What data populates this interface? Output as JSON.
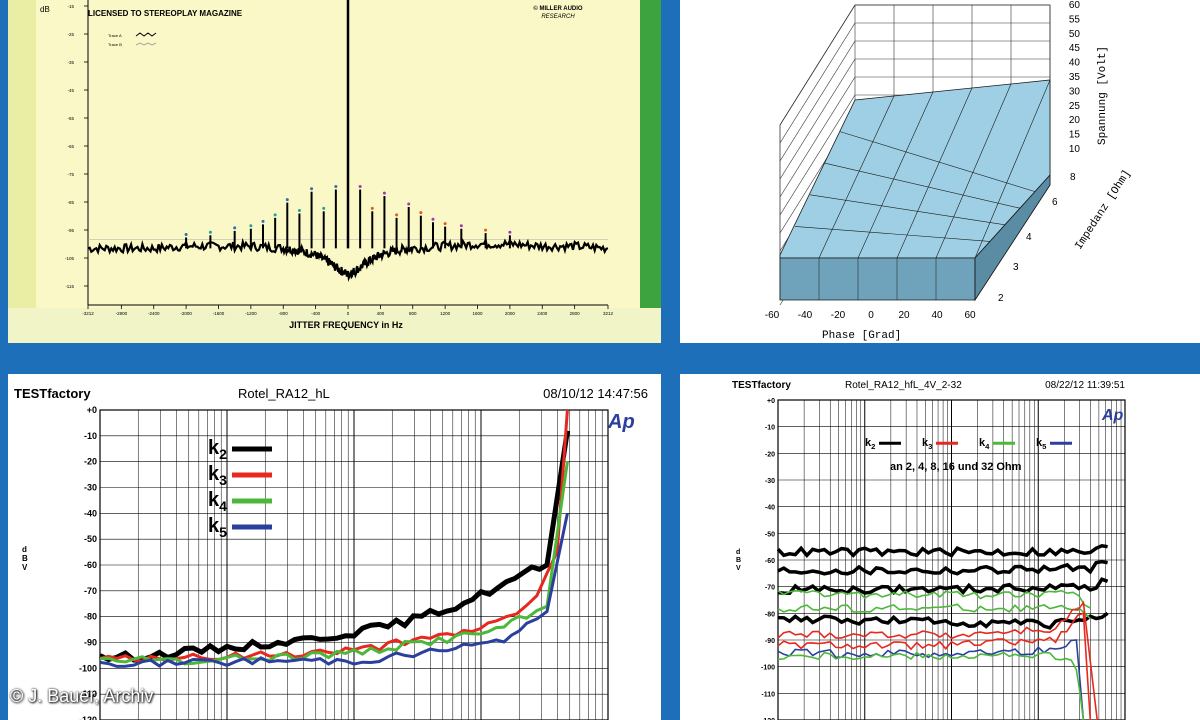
{
  "copyright": "© J. Bauer, Archiv",
  "chart_data": [
    {
      "type": "line",
      "id": "jitter",
      "title": "LICENSED TO STEREOPLAY MAGAZINE",
      "brand": [
        "© MILLER AUDIO",
        "RESEARCH"
      ],
      "ylabel": "dB",
      "xlabel": "JITTER FREQUENCY in Hz",
      "legend": [
        "Trace A",
        "Trace B"
      ],
      "x_ticks": [
        "-3212",
        "-2800",
        "-2400",
        "-2000",
        "-1600",
        "-1200",
        "-800",
        "-400",
        "0",
        "400",
        "800",
        "1200",
        "1600",
        "2000",
        "2400",
        "2800",
        "3212"
      ],
      "y_ticks": [
        "-15",
        "-25",
        "-35",
        "-45",
        "-55",
        "-65",
        "-75",
        "-85",
        "-95",
        "-105",
        "-115"
      ],
      "xlim": [
        -3212,
        3212
      ],
      "ylim": [
        -155,
        -15
      ],
      "series": [
        {
          "values": [
            [
              -3212,
              -129
            ],
            [
              -2800,
              -129
            ],
            [
              -2400,
              -129
            ],
            [
              -2000,
              -128
            ],
            [
              -1600,
              -128
            ],
            [
              -1200,
              -128
            ],
            [
              -800,
              -129
            ],
            [
              -600,
              -130
            ],
            [
              -400,
              -132
            ],
            [
              -250,
              -135
            ],
            [
              -100,
              -139
            ],
            [
              0,
              -141
            ],
            [
              100,
              -139
            ],
            [
              250,
              -135
            ],
            [
              400,
              -132
            ],
            [
              600,
              -130
            ],
            [
              800,
              -129
            ],
            [
              1200,
              -128
            ],
            [
              1600,
              -127
            ],
            [
              2000,
              -127
            ],
            [
              2400,
              -128
            ],
            [
              2800,
              -128
            ],
            [
              3212,
              -129
            ]
          ]
        }
      ],
      "spikes": [
        [
          0,
          -15
        ],
        [
          -150,
          -102
        ],
        [
          150,
          -102
        ],
        [
          -300,
          -112
        ],
        [
          300,
          -112
        ],
        [
          -450,
          -103
        ],
        [
          450,
          -105
        ],
        [
          -600,
          -113
        ],
        [
          600,
          -115
        ],
        [
          -750,
          -108
        ],
        [
          750,
          -110
        ],
        [
          -900,
          -115
        ],
        [
          900,
          -114
        ],
        [
          -1050,
          -118
        ],
        [
          1050,
          -117
        ],
        [
          -1200,
          -120
        ],
        [
          1200,
          -119
        ],
        [
          -1400,
          -121
        ],
        [
          1400,
          -120
        ],
        [
          -1700,
          -123
        ],
        [
          1700,
          -122
        ],
        [
          -2000,
          -124
        ],
        [
          2000,
          -123
        ]
      ]
    },
    {
      "type": "3d-surface",
      "id": "surface",
      "x_label": "Phase [Grad]",
      "x_ticks": [
        "-60",
        "-40",
        "-20",
        "0",
        "20",
        "40",
        "60"
      ],
      "z_label": "Impedanz [Ohm]",
      "z_ticks": [
        "2",
        "3",
        "4",
        "6",
        "8"
      ],
      "y_label": "Spannung [Volt]",
      "y_ticks": [
        "10",
        "15",
        "20",
        "25",
        "30",
        "35",
        "40",
        "45",
        "50",
        "55",
        "60"
      ],
      "y_range": [
        10,
        60
      ]
    },
    {
      "type": "line",
      "id": "dist1",
      "header": [
        "TESTfactory",
        "Rotel_RA12_hL",
        "08/10/12 14:47:56"
      ],
      "ylabel": "dBV",
      "ylim": [
        -120,
        0
      ],
      "y_ticks": [
        "+0",
        "-10",
        "-20",
        "-30",
        "-40",
        "-50",
        "-60",
        "-70",
        "-80",
        "-90",
        "-100",
        "-110",
        "-120"
      ],
      "legend": [
        {
          "name": "k2",
          "color": "#000000"
        },
        {
          "name": "k3",
          "color": "#e8281e"
        },
        {
          "name": "k4",
          "color": "#4cb83a"
        },
        {
          "name": "k5",
          "color": "#2b3f9e"
        }
      ],
      "series": [
        {
          "name": "k2",
          "values": [
            [
              0,
              -96
            ],
            [
              0.1,
              -95
            ],
            [
              0.2,
              -93
            ],
            [
              0.3,
              -91
            ],
            [
              0.4,
              -89
            ],
            [
              0.5,
              -86
            ],
            [
              0.6,
              -82
            ],
            [
              0.7,
              -76
            ],
            [
              0.8,
              -67
            ],
            [
              0.85,
              -62
            ],
            [
              0.88,
              -60
            ],
            [
              0.92,
              -8
            ]
          ]
        },
        {
          "name": "k3",
          "values": [
            [
              0,
              -97
            ],
            [
              0.1,
              -96
            ],
            [
              0.2,
              -96
            ],
            [
              0.3,
              -95
            ],
            [
              0.4,
              -94
            ],
            [
              0.5,
              -93
            ],
            [
              0.6,
              -90
            ],
            [
              0.7,
              -87
            ],
            [
              0.78,
              -82
            ],
            [
              0.82,
              -78
            ],
            [
              0.86,
              -72
            ],
            [
              0.9,
              -55
            ],
            [
              0.92,
              0
            ]
          ]
        },
        {
          "name": "k4",
          "values": [
            [
              0,
              -97
            ],
            [
              0.1,
              -97
            ],
            [
              0.2,
              -97
            ],
            [
              0.3,
              -96
            ],
            [
              0.4,
              -95
            ],
            [
              0.5,
              -94
            ],
            [
              0.6,
              -91
            ],
            [
              0.7,
              -88
            ],
            [
              0.78,
              -85
            ],
            [
              0.84,
              -80
            ],
            [
              0.88,
              -76
            ],
            [
              0.92,
              -20
            ]
          ]
        },
        {
          "name": "k5",
          "values": [
            [
              0,
              -98
            ],
            [
              0.1,
              -98
            ],
            [
              0.2,
              -98
            ],
            [
              0.3,
              -97
            ],
            [
              0.4,
              -97
            ],
            [
              0.5,
              -97
            ],
            [
              0.6,
              -95
            ],
            [
              0.7,
              -92
            ],
            [
              0.78,
              -90
            ],
            [
              0.84,
              -84
            ],
            [
              0.88,
              -78
            ],
            [
              0.92,
              -40
            ]
          ]
        }
      ]
    },
    {
      "type": "line",
      "id": "dist2",
      "header": [
        "TESTfactory",
        "Rotel_RA12_hfL_4V_2-32",
        "08/22/12 11:39:51"
      ],
      "ylabel": "dBV",
      "ylim": [
        -120,
        0
      ],
      "y_ticks": [
        "+0",
        "-10",
        "-20",
        "-30",
        "-40",
        "-50",
        "-60",
        "-70",
        "-80",
        "-90",
        "-100",
        "-110",
        "-120"
      ],
      "legend": [
        {
          "name": "k2",
          "color": "#000000"
        },
        {
          "name": "k3",
          "color": "#e8281e"
        },
        {
          "name": "k4",
          "color": "#4cb83a"
        },
        {
          "name": "k5",
          "color": "#2b3f9e"
        }
      ],
      "annotation": "an 2, 4, 8, 16 und 32 Ohm",
      "series": [
        {
          "name": "k2",
          "values": [
            [
              0,
              -57
            ],
            [
              0.5,
              -57
            ],
            [
              0.9,
              -57
            ],
            [
              0.95,
              -55
            ]
          ]
        },
        {
          "name": "k2",
          "values": [
            [
              0,
              -64
            ],
            [
              0.5,
              -64
            ],
            [
              0.9,
              -63
            ],
            [
              0.95,
              -61
            ]
          ]
        },
        {
          "name": "k2",
          "values": [
            [
              0,
              -71
            ],
            [
              0.5,
              -71
            ],
            [
              0.9,
              -70
            ],
            [
              0.95,
              -68
            ]
          ]
        },
        {
          "name": "k2",
          "values": [
            [
              0,
              -82
            ],
            [
              0.4,
              -83
            ],
            [
              0.8,
              -84
            ],
            [
              0.95,
              -80
            ]
          ]
        },
        {
          "name": "k4",
          "values": [
            [
              0,
              -73
            ],
            [
              0.5,
              -73
            ],
            [
              0.85,
              -73
            ],
            [
              0.9,
              -78
            ]
          ]
        },
        {
          "name": "k4",
          "values": [
            [
              0,
              -78
            ],
            [
              0.5,
              -78
            ],
            [
              0.85,
              -78
            ],
            [
              0.9,
              -82
            ]
          ]
        },
        {
          "name": "k3",
          "values": [
            [
              0,
              -88
            ],
            [
              0.5,
              -88
            ],
            [
              0.8,
              -86
            ],
            [
              0.88,
              -76
            ],
            [
              0.92,
              -120
            ]
          ]
        },
        {
          "name": "k3",
          "values": [
            [
              0,
              -92
            ],
            [
              0.5,
              -92
            ],
            [
              0.8,
              -90
            ],
            [
              0.88,
              -80
            ],
            [
              0.9,
              -120
            ]
          ]
        },
        {
          "name": "k5",
          "values": [
            [
              0,
              -95
            ],
            [
              0.5,
              -95
            ],
            [
              0.8,
              -94
            ],
            [
              0.86,
              -90
            ],
            [
              0.88,
              -120
            ]
          ]
        },
        {
          "name": "k4",
          "values": [
            [
              0,
              -96
            ],
            [
              0.5,
              -96
            ],
            [
              0.8,
              -96
            ],
            [
              0.86,
              -100
            ],
            [
              0.88,
              -120
            ]
          ]
        }
      ]
    }
  ]
}
